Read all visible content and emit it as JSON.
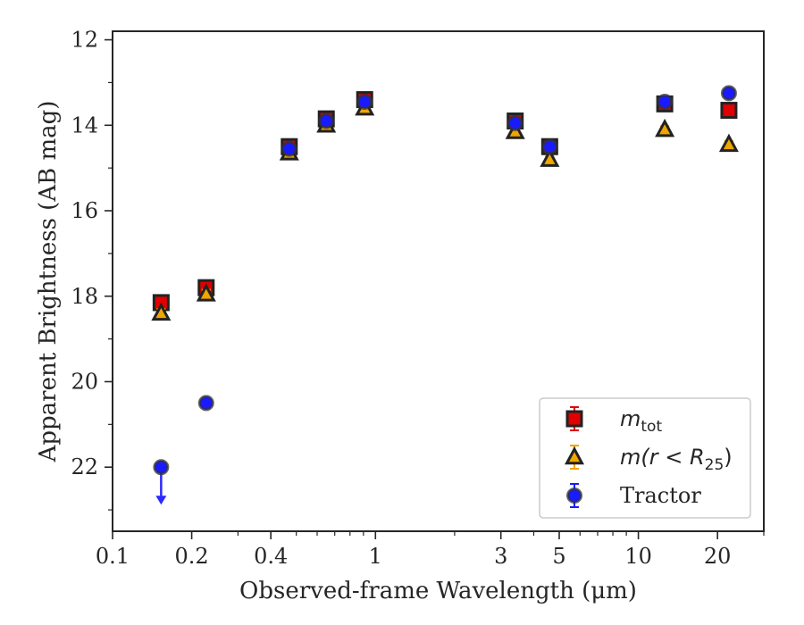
{
  "chart_data": {
    "type": "scatter",
    "title": "",
    "xlabel": "Observed-frame Wavelength (μm)",
    "ylabel": "Apparent Brightness (AB mag)",
    "x_scale": "log",
    "xlim": [
      0.1,
      30
    ],
    "ylim": [
      23.5,
      11.8
    ],
    "y_inverted": true,
    "grid": false,
    "legend_position": "lower right",
    "x_ticks": [
      {
        "value": 0.1,
        "label": "0.1"
      },
      {
        "value": 0.2,
        "label": "0.2"
      },
      {
        "value": 0.4,
        "label": "0.4"
      },
      {
        "value": 1,
        "label": "1"
      },
      {
        "value": 3,
        "label": "3"
      },
      {
        "value": 5,
        "label": "5"
      },
      {
        "value": 10,
        "label": "10"
      },
      {
        "value": 20,
        "label": "20"
      }
    ],
    "y_ticks": [
      {
        "value": 12,
        "label": "12"
      },
      {
        "value": 14,
        "label": "14"
      },
      {
        "value": 16,
        "label": "16"
      },
      {
        "value": 18,
        "label": "18"
      },
      {
        "value": 20,
        "label": "20"
      },
      {
        "value": 22,
        "label": "22"
      }
    ],
    "series": [
      {
        "name": "m_tot",
        "marker": "square",
        "color": "#e00000",
        "edge_color": "#222222",
        "points": [
          {
            "x": 0.153,
            "y": 18.15,
            "err": 0.1
          },
          {
            "x": 0.227,
            "y": 17.8,
            "err": 0.1
          },
          {
            "x": 0.47,
            "y": 14.5,
            "err": 0.08
          },
          {
            "x": 0.65,
            "y": 13.85,
            "err": 0.08
          },
          {
            "x": 0.91,
            "y": 13.4,
            "err": 0.08
          },
          {
            "x": 3.4,
            "y": 13.9,
            "err": 0.08
          },
          {
            "x": 4.6,
            "y": 14.5,
            "err": 0.08
          },
          {
            "x": 12.6,
            "y": 13.5,
            "err": 0.08
          },
          {
            "x": 22.1,
            "y": 13.65,
            "err": 0.08
          }
        ]
      },
      {
        "name": "m(r < R25)",
        "marker": "triangle",
        "color": "#f0a500",
        "edge_color": "#222222",
        "points": [
          {
            "x": 0.153,
            "y": 18.4,
            "err": 0.1
          },
          {
            "x": 0.227,
            "y": 17.95,
            "err": 0.1
          },
          {
            "x": 0.47,
            "y": 14.65,
            "err": 0.08
          },
          {
            "x": 0.65,
            "y": 14.0,
            "err": 0.08
          },
          {
            "x": 0.91,
            "y": 13.6,
            "err": 0.08
          },
          {
            "x": 3.4,
            "y": 14.15,
            "err": 0.08
          },
          {
            "x": 4.6,
            "y": 14.8,
            "err": 0.08
          },
          {
            "x": 12.6,
            "y": 14.1,
            "err": 0.08
          },
          {
            "x": 22.1,
            "y": 14.45,
            "err": 0.08
          }
        ]
      },
      {
        "name": "Tractor",
        "marker": "circle",
        "color": "#1a1aff",
        "edge_color": "#333333",
        "points": [
          {
            "x": 0.153,
            "y": 22.0,
            "upper_limit": true
          },
          {
            "x": 0.227,
            "y": 20.5,
            "err": 0.1
          },
          {
            "x": 0.47,
            "y": 14.55,
            "err": 0.08
          },
          {
            "x": 0.65,
            "y": 13.9,
            "err": 0.08
          },
          {
            "x": 0.91,
            "y": 13.45,
            "err": 0.08
          },
          {
            "x": 3.4,
            "y": 13.95,
            "err": 0.08
          },
          {
            "x": 4.6,
            "y": 14.5,
            "err": 0.08
          },
          {
            "x": 12.6,
            "y": 13.45,
            "err": 0.08
          },
          {
            "x": 22.1,
            "y": 13.25,
            "err": 0.08
          }
        ]
      }
    ],
    "legend": [
      {
        "marker": "square",
        "label_main": "m",
        "label_sub": "tot",
        "label_full": "m_tot"
      },
      {
        "marker": "triangle",
        "label_main": "m(r < R",
        "label_sub": "25",
        "label_tail": ")",
        "label_full": "m(r < R25)"
      },
      {
        "marker": "circle",
        "label_main": "Tractor",
        "label_full": "Tractor"
      }
    ]
  }
}
